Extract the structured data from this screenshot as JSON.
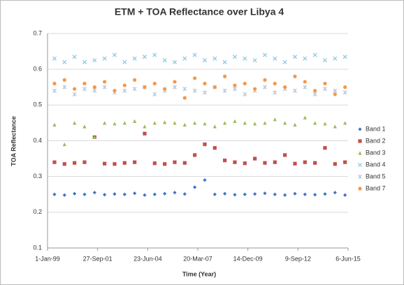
{
  "chart_data": {
    "type": "scatter",
    "title": "ETM + TOA Reflectance over Libya 4",
    "x_label": "Time (Year)",
    "y_label": "TOA Reflectance",
    "xlim": [
      36161,
      42161
    ],
    "xticks": [
      {
        "value": 36161,
        "label": "1-Jan-99"
      },
      {
        "value": 37161,
        "label": "27-Sep-01"
      },
      {
        "value": 38161,
        "label": "23-Jun-04"
      },
      {
        "value": 39161,
        "label": "20-Mar-07"
      },
      {
        "value": 40161,
        "label": "14-Dec-09"
      },
      {
        "value": 41161,
        "label": "9-Sep-12"
      },
      {
        "value": 42161,
        "label": "6-Jun-15"
      }
    ],
    "ylim": [
      0.1,
      0.7
    ],
    "yticks": [
      0.1,
      0.2,
      0.3,
      0.4,
      0.5,
      0.6,
      0.7
    ],
    "grid": true,
    "legend": "right",
    "x": [
      36300,
      36500,
      36700,
      36900,
      37100,
      37300,
      37500,
      37700,
      37900,
      38100,
      38300,
      38500,
      38700,
      38900,
      39100,
      39300,
      39500,
      39700,
      39900,
      40100,
      40300,
      40500,
      40700,
      40900,
      41100,
      41300,
      41500,
      41700,
      41900,
      42100
    ],
    "series": [
      {
        "name": "Band 1",
        "color": "#4472c4",
        "marker": "diamond",
        "values": [
          0.25,
          0.248,
          0.252,
          0.25,
          0.255,
          0.249,
          0.251,
          0.25,
          0.253,
          0.248,
          0.25,
          0.252,
          0.255,
          0.251,
          0.27,
          0.29,
          0.25,
          0.252,
          0.249,
          0.25,
          0.251,
          0.253,
          0.25,
          0.248,
          0.252,
          0.25,
          0.249,
          0.251,
          0.255,
          0.248
        ]
      },
      {
        "name": "Band 2",
        "color": "#c0504d",
        "marker": "square",
        "values": [
          0.34,
          0.335,
          0.338,
          0.34,
          0.41,
          0.336,
          0.335,
          0.338,
          0.34,
          0.42,
          0.337,
          0.335,
          0.34,
          0.338,
          0.36,
          0.39,
          0.38,
          0.345,
          0.34,
          0.337,
          0.35,
          0.338,
          0.34,
          0.36,
          0.336,
          0.34,
          0.338,
          0.38,
          0.335,
          0.34
        ]
      },
      {
        "name": "Band 3",
        "color": "#9bbb59",
        "marker": "triangle",
        "values": [
          0.445,
          0.39,
          0.45,
          0.44,
          0.41,
          0.45,
          0.448,
          0.45,
          0.455,
          0.44,
          0.45,
          0.452,
          0.45,
          0.445,
          0.45,
          0.448,
          0.44,
          0.45,
          0.455,
          0.45,
          0.448,
          0.45,
          0.46,
          0.45,
          0.445,
          0.465,
          0.45,
          0.448,
          0.44,
          0.45
        ]
      },
      {
        "name": "Band 4",
        "color": "#8cc8e8",
        "marker": "cross",
        "values": [
          0.63,
          0.62,
          0.635,
          0.62,
          0.625,
          0.63,
          0.64,
          0.62,
          0.63,
          0.635,
          0.64,
          0.625,
          0.62,
          0.63,
          0.64,
          0.625,
          0.63,
          0.62,
          0.635,
          0.63,
          0.625,
          0.64,
          0.63,
          0.62,
          0.635,
          0.63,
          0.64,
          0.625,
          0.63,
          0.635
        ]
      },
      {
        "name": "Band 5",
        "color": "#b9c9e0",
        "marker": "star",
        "values": [
          0.54,
          0.55,
          0.53,
          0.545,
          0.54,
          0.55,
          0.535,
          0.54,
          0.545,
          0.55,
          0.53,
          0.54,
          0.55,
          0.545,
          0.54,
          0.535,
          0.55,
          0.54,
          0.545,
          0.53,
          0.54,
          0.55,
          0.535,
          0.545,
          0.54,
          0.55,
          0.53,
          0.545,
          0.54,
          0.535
        ]
      },
      {
        "name": "Band 7",
        "color": "#f79646",
        "marker": "circle",
        "values": [
          0.56,
          0.57,
          0.545,
          0.56,
          0.55,
          0.565,
          0.54,
          0.555,
          0.57,
          0.55,
          0.56,
          0.545,
          0.565,
          0.52,
          0.575,
          0.56,
          0.55,
          0.58,
          0.555,
          0.56,
          0.545,
          0.57,
          0.56,
          0.55,
          0.58,
          0.565,
          0.54,
          0.56,
          0.53,
          0.55
        ]
      }
    ]
  }
}
